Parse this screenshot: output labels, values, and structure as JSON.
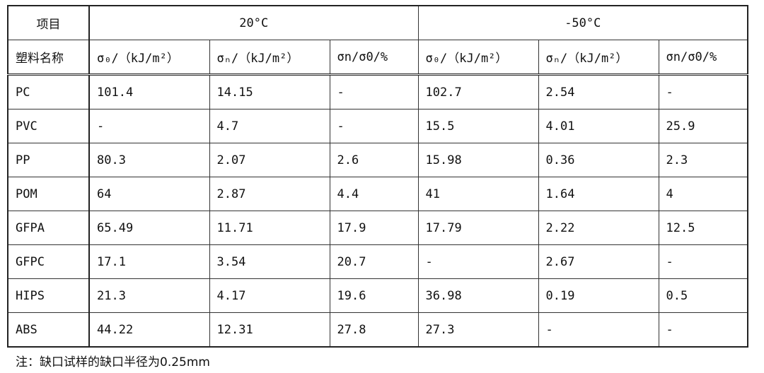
{
  "table": {
    "header_row1": {
      "item": "项目",
      "group1": "20°C",
      "group2": "-50°C"
    },
    "header_row2": [
      "塑料名称",
      "σ₀/（kJ/m²）",
      "σₙ/（kJ/m²）",
      "σn/σ0/%",
      "σ₀/（kJ/m²）",
      "σₙ/（kJ/m²）",
      "σn/σ0/%"
    ],
    "rows": [
      [
        "PC",
        "101.4",
        "14.15",
        "-",
        "102.7",
        "2.54",
        "-"
      ],
      [
        "PVC",
        "-",
        "4.7",
        "-",
        "15.5",
        "4.01",
        "25.9"
      ],
      [
        "PP",
        "80.3",
        "2.07",
        "2.6",
        "15.98",
        "0.36",
        "2.3"
      ],
      [
        "POM",
        "64",
        "2.87",
        "4.4",
        "41",
        "1.64",
        "4"
      ],
      [
        "GFPA",
        "65.49",
        "11.71",
        "17.9",
        "17.79",
        "2.22",
        "12.5"
      ],
      [
        "GFPC",
        "17.1",
        "3.54",
        "20.7",
        "-",
        "2.67",
        "-"
      ],
      [
        "HIPS",
        "21.3",
        "4.17",
        "19.6",
        "36.98",
        "0.19",
        "0.5"
      ],
      [
        "ABS",
        "44.22",
        "12.31",
        "27.8",
        "27.3",
        "-",
        "-"
      ]
    ]
  },
  "note": "注：缺口试样的缺口半径为0.25mm"
}
